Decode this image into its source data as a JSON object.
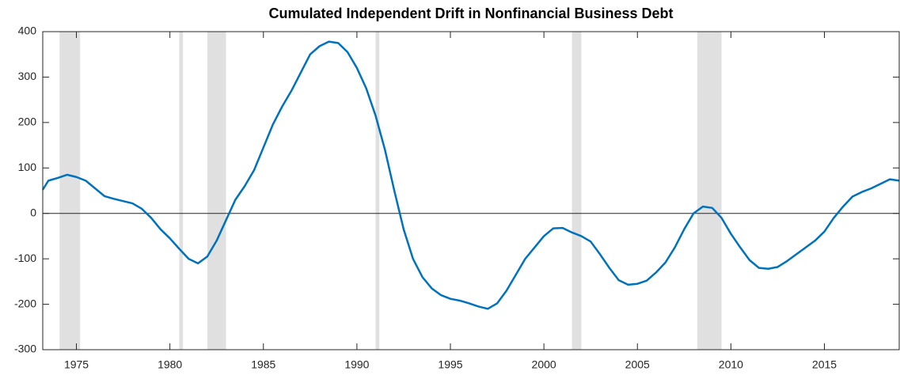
{
  "chart_data": {
    "type": "line",
    "title": "Cumulated Independent Drift in Nonfinancial Business Debt",
    "x": [
      1973.2,
      1973.5,
      1974,
      1974.5,
      1975,
      1975.5,
      1976,
      1976.5,
      1977,
      1977.5,
      1978,
      1978.5,
      1979,
      1979.5,
      1980,
      1980.5,
      1981,
      1981.5,
      1982,
      1982.5,
      1983,
      1983.5,
      1984,
      1984.5,
      1985,
      1985.5,
      1986,
      1986.5,
      1987,
      1987.5,
      1988,
      1988.5,
      1989,
      1989.5,
      1990,
      1990.5,
      1991,
      1991.5,
      1992,
      1992.5,
      1993,
      1993.5,
      1994,
      1994.5,
      1995,
      1995.5,
      1996,
      1996.5,
      1997,
      1997.5,
      1998,
      1998.5,
      1999,
      1999.5,
      2000,
      2000.5,
      2001,
      2001.5,
      2002,
      2002.5,
      2003,
      2003.5,
      2004,
      2004.5,
      2005,
      2005.5,
      2006,
      2006.5,
      2007,
      2007.5,
      2008,
      2008.5,
      2009,
      2009.5,
      2010,
      2010.5,
      2011,
      2011.5,
      2012,
      2012.5,
      2013,
      2013.5,
      2014,
      2014.5,
      2015,
      2015.5,
      2016,
      2016.5,
      2017,
      2017.5,
      2018,
      2018.5,
      2019
    ],
    "series": [
      {
        "color": "#0072bd",
        "values": [
          52,
          72,
          78,
          85,
          80,
          72,
          55,
          38,
          32,
          27,
          22,
          10,
          -10,
          -35,
          -55,
          -78,
          -100,
          -110,
          -95,
          -60,
          -15,
          30,
          60,
          95,
          145,
          195,
          235,
          270,
          310,
          350,
          368,
          378,
          375,
          355,
          320,
          275,
          215,
          140,
          50,
          -35,
          -100,
          -140,
          -165,
          -180,
          -188,
          -192,
          -198,
          -205,
          -210,
          -198,
          -170,
          -135,
          -100,
          -75,
          -50,
          -33,
          -32,
          -42,
          -50,
          -62,
          -90,
          -120,
          -147,
          -157,
          -155,
          -148,
          -130,
          -108,
          -75,
          -35,
          0,
          15,
          12,
          -10,
          -45,
          -75,
          -103,
          -120,
          -122,
          -118,
          -105,
          -90,
          -75,
          -60,
          -40,
          -10,
          15,
          37,
          47,
          55,
          65,
          75,
          72
        ]
      }
    ],
    "shaded_regions": [
      [
        1974.1,
        1975.2
      ],
      [
        1980.5,
        1980.7
      ],
      [
        1982.0,
        1983.0
      ],
      [
        1991.0,
        1991.2
      ],
      [
        2001.5,
        2002.0
      ],
      [
        2008.2,
        2009.5
      ]
    ],
    "shade_color": "#e0e0e0",
    "reference_line": 0,
    "xlim": [
      1973.2,
      2019
    ],
    "xticks": [
      1975,
      1980,
      1985,
      1990,
      1995,
      2000,
      2005,
      2010,
      2015
    ],
    "ylim": [
      -300,
      400
    ],
    "yticks": [
      -300,
      -200,
      -100,
      0,
      100,
      200,
      300,
      400
    ]
  }
}
